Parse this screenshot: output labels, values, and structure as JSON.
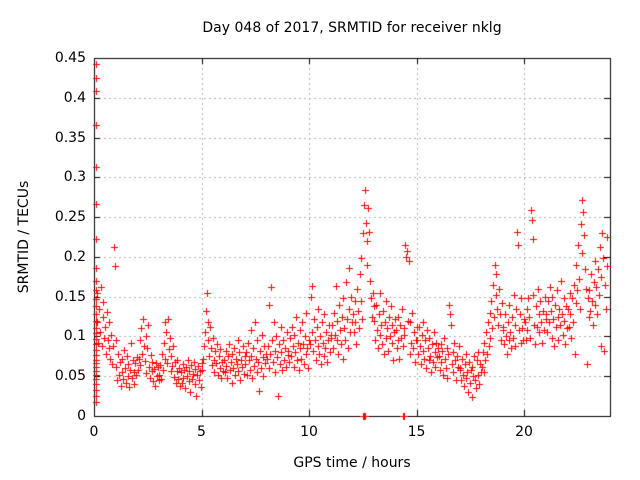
{
  "chart_data": {
    "type": "scatter",
    "title": "Day 048 of 2017, SRMTID for receiver nklg",
    "xlabel": "GPS time / hours",
    "ylabel": "SRMTID / TECUs",
    "xlim": [
      0,
      24
    ],
    "ylim": [
      0,
      0.45
    ],
    "xticks": [
      "0",
      "5",
      "10",
      "15",
      "20"
    ],
    "yticks": [
      "0",
      "0.05",
      "0.1",
      "0.15",
      "0.2",
      "0.25",
      "0.3",
      "0.35",
      "0.4",
      "0.45"
    ],
    "grid": true,
    "legend_position": "none",
    "marker": "plus",
    "marker_color": "#ff0000",
    "grid_color": "#b3b3b3",
    "axis_color": "#000000",
    "series": [
      {
        "name": "SRMTID",
        "segments": [
          {
            "x0": 0.07,
            "dx": 0,
            "y": [
              0.442,
              0.425,
              0.408,
              0.366,
              0.313,
              0.266,
              0.222,
              0.186,
              0.17,
              0.158,
              0.147,
              0.138,
              0.128,
              0.119,
              0.111,
              0.104,
              0.097,
              0.09,
              0.083,
              0.077,
              0.071,
              0.066,
              0.061,
              0.056,
              0.051,
              0.046,
              0.04,
              0.033,
              0.025,
              0.018
            ]
          },
          {
            "x0": 0.12,
            "dx": 0.04,
            "y": [
              0.155,
              0.118,
              0.092,
              0.135,
              0.105,
              0.162,
              0.088,
              0.125,
              0.143,
              0.098,
              0.112,
              0.078,
              0.131,
              0.095,
              0.085,
              0.118,
              0.072,
              0.102,
              0.065,
              0.088,
              0.212,
              0.188,
              0.095
            ]
          },
          {
            "x0": 1.04,
            "dx": 0.04,
            "y": [
              0.062,
              0.045,
              0.078,
              0.052,
              0.068,
              0.038,
              0.072,
              0.055,
              0.047,
              0.083,
              0.06,
              0.042,
              0.075,
              0.05,
              0.065,
              0.036,
              0.058,
              0.092,
              0.048,
              0.07,
              0.055,
              0.04,
              0.066,
              0.051,
              0.074
            ]
          },
          {
            "x0": 2.04,
            "dx": 0.04,
            "y": [
              0.058,
              0.072,
              0.095,
              0.064,
              0.11,
              0.078,
              0.122,
              0.088,
              0.069,
              0.101,
              0.054,
              0.085,
              0.115,
              0.062,
              0.048,
              0.077,
              0.056,
              0.068,
              0.044,
              0.059,
              0.038,
              0.066,
              0.05,
              0.061,
              0.045
            ]
          },
          {
            "x0": 3.04,
            "dx": 0.04,
            "y": [
              0.052,
              0.064,
              0.047,
              0.078,
              0.058,
              0.092,
              0.118,
              0.072,
              0.105,
              0.066,
              0.122,
              0.084,
              0.098,
              0.057,
              0.075,
              0.063,
              0.088,
              0.049,
              0.068,
              0.042,
              0.057,
              0.071,
              0.046,
              0.06,
              0.038
            ]
          },
          {
            "x0": 4.04,
            "dx": 0.04,
            "y": [
              0.055,
              0.042,
              0.065,
              0.048,
              0.058,
              0.035,
              0.062,
              0.05,
              0.07,
              0.044,
              0.056,
              0.03,
              0.064,
              0.047,
              0.053,
              0.068,
              0.04,
              0.059,
              0.025,
              0.051,
              0.063,
              0.045,
              0.057,
              0.036,
              0.066
            ]
          },
          {
            "x0": 5.04,
            "dx": 0.04,
            "y": [
              0.058,
              0.072,
              0.088,
              0.105,
              0.132,
              0.155,
              0.118,
              0.095,
              0.076,
              0.112,
              0.085,
              0.064,
              0.098,
              0.07,
              0.055,
              0.082,
              0.066,
              0.09,
              0.052,
              0.075,
              0.06,
              0.084,
              0.048,
              0.068,
              0.057
            ]
          },
          {
            "x0": 6.04,
            "dx": 0.04,
            "y": [
              0.07,
              0.055,
              0.082,
              0.063,
              0.048,
              0.075,
              0.09,
              0.058,
              0.068,
              0.042,
              0.078,
              0.06,
              0.086,
              0.051,
              0.072,
              0.065,
              0.095,
              0.056,
              0.08,
              0.045,
              0.07,
              0.062,
              0.088,
              0.053,
              0.076
            ]
          },
          {
            "x0": 7.04,
            "dx": 0.04,
            "y": [
              0.065,
              0.08,
              0.052,
              0.092,
              0.07,
              0.058,
              0.108,
              0.075,
              0.048,
              0.085,
              0.063,
              0.118,
              0.072,
              0.055,
              0.095,
              0.068,
              0.032,
              0.082,
              0.06,
              0.102,
              0.074,
              0.05,
              0.088,
              0.066,
              0.078
            ]
          },
          {
            "x0": 8.04,
            "dx": 0.04,
            "y": [
              0.072,
              0.088,
              0.06,
              0.14,
              0.078,
              0.162,
              0.095,
              0.068,
              0.118,
              0.082,
              0.055,
              0.1,
              0.074,
              0.025,
              0.09,
              0.065,
              0.112,
              0.08,
              0.058,
              0.096,
              0.07,
              0.085,
              0.062,
              0.105,
              0.077
            ]
          },
          {
            "x0": 9.04,
            "dx": 0.04,
            "y": [
              0.082,
              0.068,
              0.098,
              0.075,
              0.112,
              0.088,
              0.062,
              0.102,
              0.08,
              0.125,
              0.07,
              0.092,
              0.058,
              0.108,
              0.085,
              0.072,
              0.118,
              0.09,
              0.065,
              0.1,
              0.078,
              0.13,
              0.086,
              0.06,
              0.095
            ]
          },
          {
            "x0": 10.04,
            "dx": 0.04,
            "y": [
              0.09,
              0.15,
              0.163,
              0.105,
              0.082,
              0.122,
              0.095,
              0.07,
              0.112,
              0.088,
              0.135,
              0.078,
              0.1,
              0.065,
              0.118,
              0.092,
              0.075,
              0.128,
              0.085,
              0.105,
              0.068,
              0.096,
              0.115,
              0.08,
              0.102
            ]
          },
          {
            "x0": 11.04,
            "dx": 0.04,
            "y": [
              0.098,
              0.115,
              0.085,
              0.13,
              0.102,
              0.163,
              0.095,
              0.12,
              0.078,
              0.14,
              0.108,
              0.09,
              0.125,
              0.072,
              0.148,
              0.11,
              0.095,
              0.168,
              0.122,
              0.085,
              0.135,
              0.186,
              0.105,
              0.15,
              0.118
            ]
          },
          {
            "x0": 12.04,
            "dx": 0.04,
            "y": [
              0.128,
              0.105,
              0.145,
              0.118,
              0.09,
              0.16,
              0.132,
              0.11,
              0.178,
              0.145,
              0.198,
              0.122,
              0.23,
              0.265,
              0.284,
              0.242,
              0.22,
              0.19,
              0.262,
              0.231,
              0.17,
              0.148,
              0.125,
              0.155,
              0.138
            ]
          },
          {
            "x0": 13.04,
            "dx": 0.04,
            "y": [
              0.12,
              0.095,
              0.14,
              0.108,
              0.085,
              0.128,
              0.102,
              0.155,
              0.115,
              0.09,
              0.132,
              0.078,
              0.118,
              0.098,
              0.145,
              0.11,
              0.082,
              0.125,
              0.1,
              0.138,
              0.092,
              0.115,
              0.07,
              0.105,
              0.122
            ]
          },
          {
            "x0": 14.04,
            "dx": 0.04,
            "y": [
              0.108,
              0.085,
              0.125,
              0.095,
              0.072,
              0.115,
              0.098,
              0.135,
              0.088,
              0.11,
              0.102,
              0.215,
              0.2,
              0.208,
              0.12,
              0.195,
              0.078,
              0.118,
              0.092,
              0.13,
              0.085,
              0.105,
              0.068,
              0.095,
              0.112
            ]
          },
          {
            "x0": 15.04,
            "dx": 0.04,
            "y": [
              0.095,
              0.078,
              0.112,
              0.088,
              0.065,
              0.102,
              0.082,
              0.118,
              0.072,
              0.095,
              0.06,
              0.108,
              0.085,
              0.07,
              0.098,
              0.075,
              0.055,
              0.09,
              0.068,
              0.105,
              0.08,
              0.062,
              0.092,
              0.074,
              0.086
            ]
          },
          {
            "x0": 16.04,
            "dx": 0.04,
            "y": [
              0.075,
              0.058,
              0.09,
              0.068,
              0.082,
              0.052,
              0.098,
              0.072,
              0.06,
              0.085,
              0.048,
              0.078,
              0.14,
              0.128,
              0.115,
              0.065,
              0.08,
              0.055,
              0.092,
              0.07,
              0.045,
              0.075,
              0.062,
              0.088,
              0.058
            ]
          },
          {
            "x0": 17.04,
            "dx": 0.04,
            "y": [
              0.06,
              0.045,
              0.072,
              0.052,
              0.038,
              0.065,
              0.048,
              0.078,
              0.055,
              0.03,
              0.068,
              0.042,
              0.058,
              0.024,
              0.062,
              0.05,
              0.075,
              0.045,
              0.035,
              0.07,
              0.052,
              0.08,
              0.04,
              0.065,
              0.055
            ]
          },
          {
            "x0": 18.04,
            "dx": 0.04,
            "y": [
              0.062,
              0.08,
              0.055,
              0.092,
              0.07,
              0.105,
              0.078,
              0.118,
              0.088,
              0.13,
              0.098,
              0.145,
              0.11,
              0.165,
              0.125,
              0.19,
              0.152,
              0.178,
              0.135,
              0.115,
              0.16,
              0.128,
              0.095,
              0.142,
              0.108
            ]
          },
          {
            "x0": 19.04,
            "dx": 0.04,
            "y": [
              0.112,
              0.09,
              0.128,
              0.1,
              0.078,
              0.118,
              0.095,
              0.14,
              0.105,
              0.085,
              0.125,
              0.098,
              0.152,
              0.115,
              0.088,
              0.135,
              0.231,
              0.215,
              0.108,
              0.128,
              0.092,
              0.148,
              0.11,
              0.095,
              0.122
            ]
          },
          {
            "x0": 20.04,
            "dx": 0.04,
            "y": [
              0.118,
              0.095,
              0.135,
              0.108,
              0.148,
              0.125,
              0.098,
              0.259,
              0.246,
              0.222,
              0.152,
              0.115,
              0.09,
              0.138,
              0.112,
              0.16,
              0.128,
              0.105,
              0.145,
              0.118,
              0.092,
              0.132,
              0.108,
              0.15,
              0.122
            ]
          },
          {
            "x0": 21.04,
            "dx": 0.04,
            "y": [
              0.128,
              0.105,
              0.145,
              0.118,
              0.162,
              0.132,
              0.098,
              0.15,
              0.122,
              0.088,
              0.14,
              0.112,
              0.158,
              0.125,
              0.095,
              0.135,
              0.115,
              0.17,
              0.128,
              0.102,
              0.148,
              0.12,
              0.09,
              0.138,
              0.11
            ]
          },
          {
            "x0": 22.04,
            "dx": 0.04,
            "y": [
              0.135,
              0.112,
              0.155,
              0.128,
              0.098,
              0.148,
              0.118,
              0.165,
              0.078,
              0.142,
              0.19,
              0.158,
              0.215,
              0.172,
              0.135,
              0.241,
              0.205,
              0.272,
              0.256,
              0.228,
              0.185,
              0.16,
              0.065,
              0.148,
              0.125
            ]
          },
          {
            "x0": 23.04,
            "dx": 0.04,
            "y": [
              0.158,
              0.132,
              0.178,
              0.145,
              0.115,
              0.168,
              0.14,
              0.195,
              0.162,
              0.128,
              0.185,
              0.152,
              0.212,
              0.088,
              0.175,
              0.23,
              0.198,
              0.082,
              0.165,
              0.135,
              0.188,
              0.225
            ]
          }
        ],
        "zero_runs": [
          [
            12.52,
            12.6
          ],
          [
            14.38,
            14.41
          ]
        ]
      }
    ]
  }
}
